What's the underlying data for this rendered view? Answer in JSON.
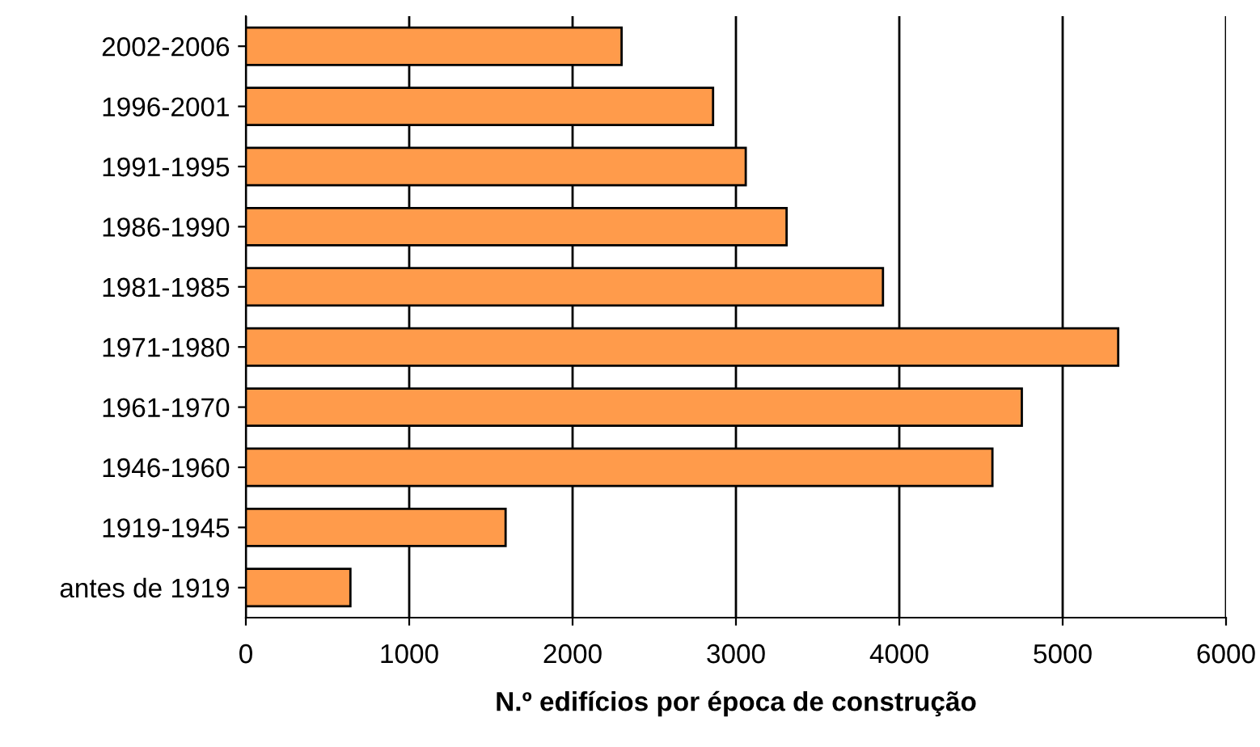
{
  "chart_data": {
    "type": "bar",
    "orientation": "horizontal",
    "xlabel": "N.º edifícios por época de construção",
    "categories": [
      "2002-2006",
      "1996-2001",
      "1991-1995",
      "1986-1990",
      "1981-1985",
      "1971-1980",
      "1961-1970",
      "1946-1960",
      "1919-1945",
      "antes de 1919"
    ],
    "values": [
      2300,
      2860,
      3060,
      3310,
      3900,
      5340,
      4750,
      4570,
      1590,
      640
    ],
    "color": "#ff9b4b",
    "xlim": [
      0,
      6000
    ],
    "xticks": [
      0,
      1000,
      2000,
      3000,
      4000,
      5000,
      6000
    ],
    "grid": "x"
  }
}
